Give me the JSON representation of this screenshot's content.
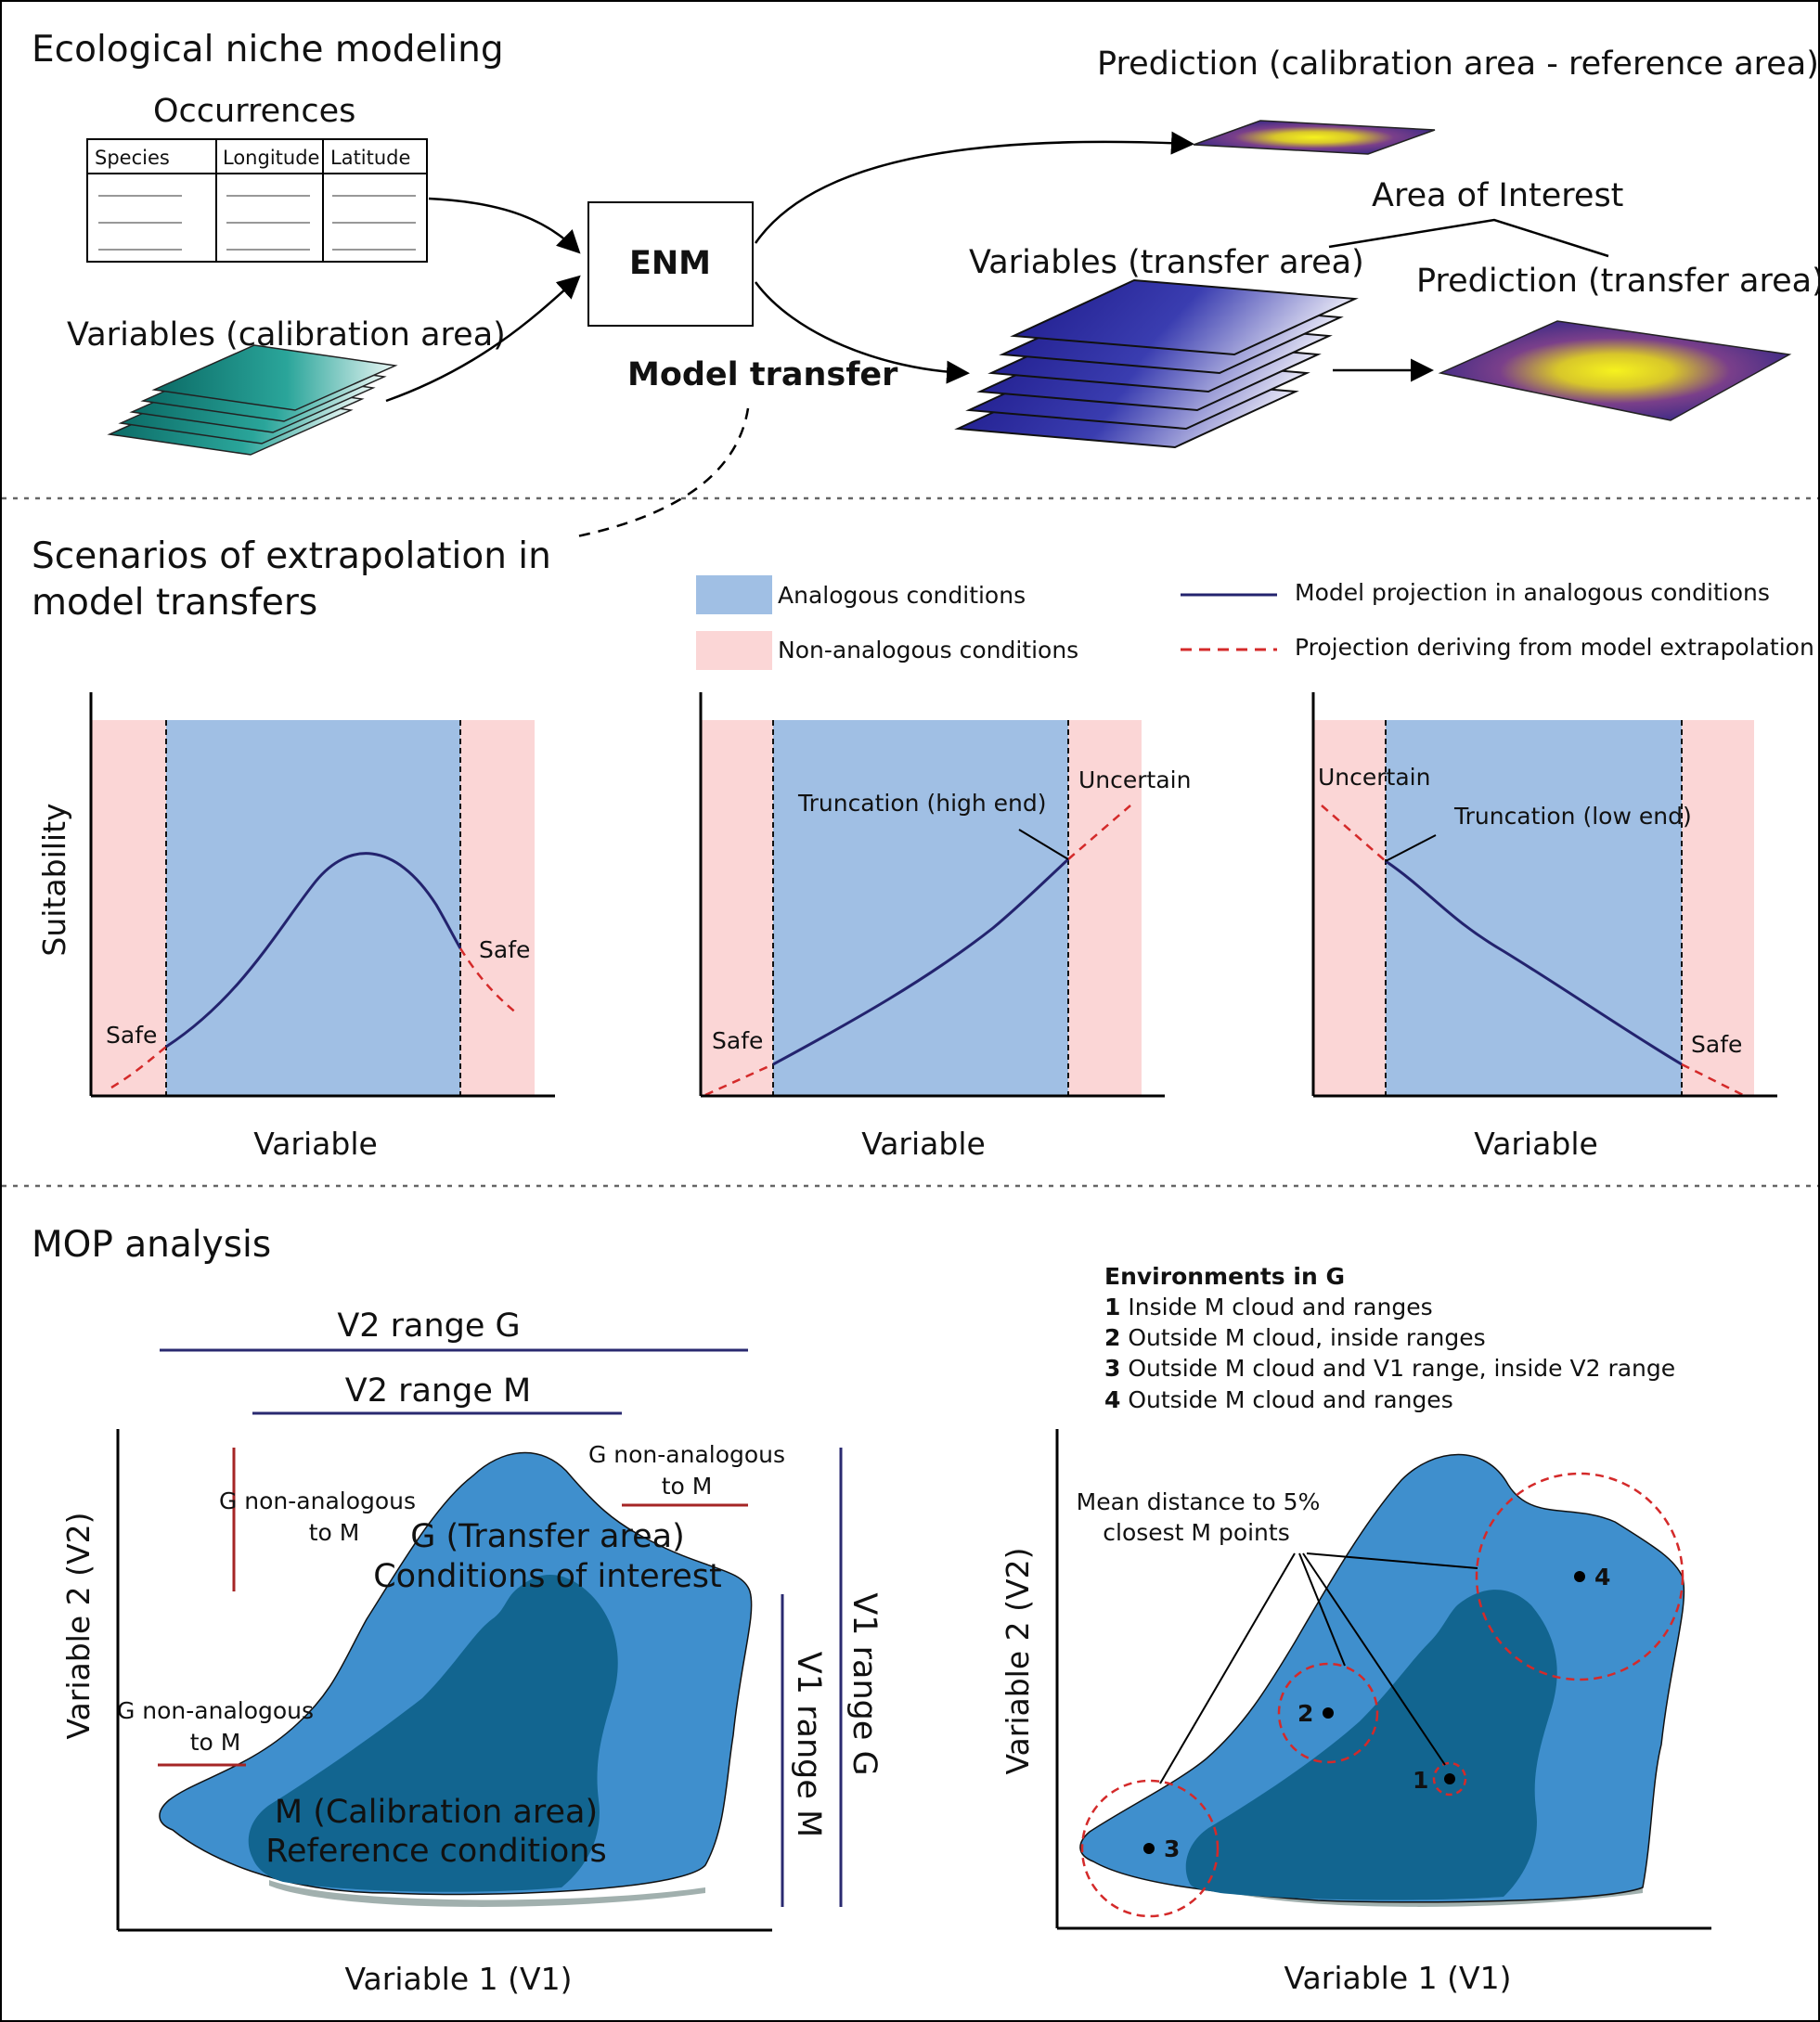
{
  "panel1": {
    "title": "Ecological niche modeling",
    "occurrences_title": "Occurrences",
    "table_headers": [
      "Species",
      "Longitude",
      "Latitude"
    ],
    "calibration_vars": "Variables (calibration area)",
    "enm": "ENM",
    "model_transfer": "Model transfer",
    "prediction_calibration": "Prediction (calibration area - reference area)",
    "area_of_interest": "Area of Interest",
    "transfer_vars": "Variables (transfer area)",
    "prediction_transfer": "Prediction (transfer area)"
  },
  "panel2": {
    "title_line1": "Scenarios of extrapolation in",
    "title_line2": "model transfers",
    "legend": {
      "analogous": "Analogous conditions",
      "non_analogous": "Non-analogous conditions",
      "projection": "Model projection in analogous conditions",
      "extrapolation": "Projection deriving from model extrapolation"
    },
    "ylabel": "Suitability",
    "xlabel": "Variable",
    "chart1": {
      "left_label": "Safe",
      "right_label": "Safe"
    },
    "chart2": {
      "left_label": "Safe",
      "right_label": "Uncertain",
      "note": "Truncation (high end)"
    },
    "chart3": {
      "left_label": "Uncertain",
      "right_label": "Safe",
      "note": "Truncation (low end)"
    }
  },
  "panel3": {
    "title": "MOP analysis",
    "v2_range_g": "V2 range G",
    "v2_range_m": "V2 range M",
    "v1_range_g": "V1 range G",
    "v1_range_m": "V1 range M",
    "g_non_analogous_a": [
      "G non-analogous",
      "to M"
    ],
    "g_non_analogous_b": [
      "G non-analogous",
      "to M"
    ],
    "g_non_analogous_c": [
      "G non-analogous",
      "to M"
    ],
    "g_area_line1": "G (Transfer area)",
    "g_area_line2": "Conditions of interest",
    "m_area_line1": "M (Calibration area)",
    "m_area_line2": "Reference conditions",
    "xlabel": "Variable 1 (V1)",
    "ylabel": "Variable 2 (V2)",
    "env_title": "Environments in G",
    "env_items": [
      {
        "num": "1",
        "text": "Inside M cloud and ranges"
      },
      {
        "num": "2",
        "text": "Outside M cloud, inside ranges"
      },
      {
        "num": "3",
        "text": "Outside M cloud and V1 range, inside V2 range"
      },
      {
        "num": "4",
        "text": "Outside M cloud and ranges"
      }
    ],
    "mean_distance_line1": "Mean distance to 5%",
    "mean_distance_line2": "closest M points",
    "points": [
      "1",
      "2",
      "3",
      "4"
    ]
  },
  "colors": {
    "analogous_blue": "#a0bfe4",
    "non_analogous_pink": "#fbd6d6",
    "projection_navy": "#23236e",
    "extrapolation_red": "#d42a2a",
    "g_cloud": "#3f8fcd",
    "m_cloud": "#126590",
    "range_line": "#2a2a70",
    "non_analog_line": "#a52525"
  }
}
